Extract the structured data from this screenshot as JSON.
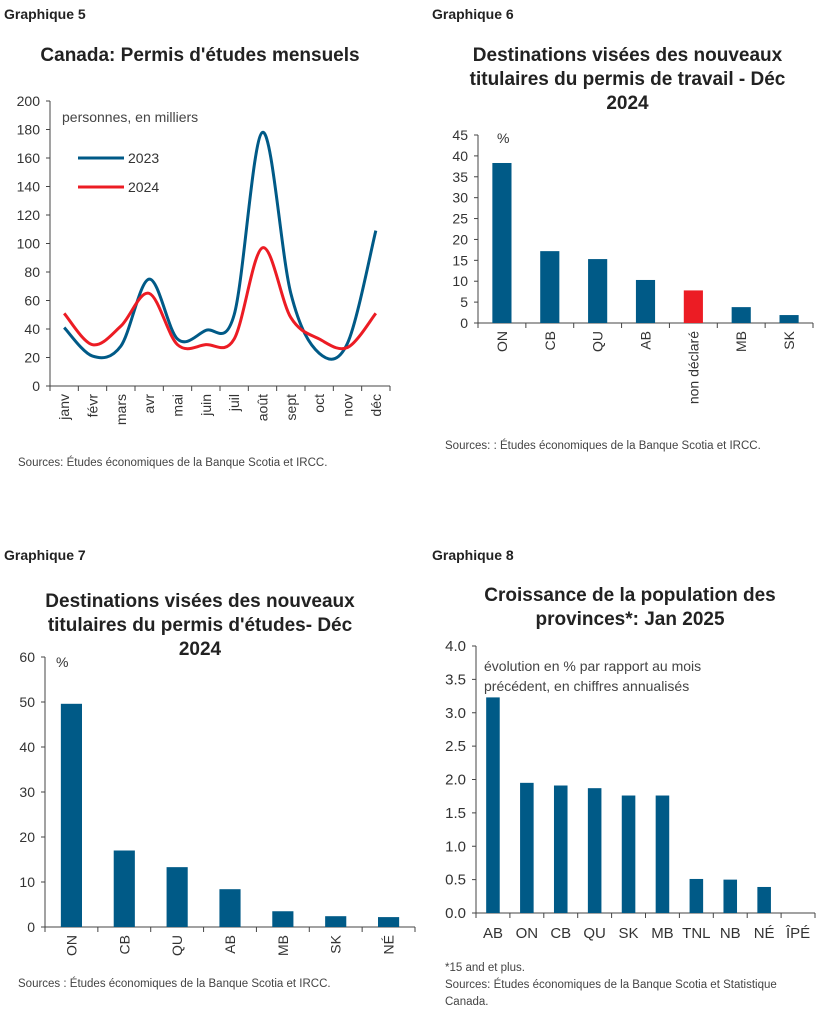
{
  "colors": {
    "blue": "#005a87",
    "red": "#ec1c24",
    "axis": "#444"
  },
  "chart_data": [
    {
      "type": "line",
      "label": "Graphique 5",
      "title": "Canada: Permis d'études mensuels",
      "ylabel": "personnes, en milliers",
      "categories": [
        "janv",
        "févr",
        "mars",
        "avr",
        "mai",
        "juin",
        "juil",
        "août",
        "sept",
        "oct",
        "nov",
        "déc"
      ],
      "ylim": [
        0,
        200
      ],
      "yticks": [
        "0",
        "20",
        "40",
        "60",
        "80",
        "100",
        "120",
        "140",
        "160",
        "180",
        "200"
      ],
      "series": [
        {
          "name": "2023",
          "color": "#005a87",
          "values": [
            41,
            21,
            28,
            75,
            33,
            39,
            50,
            178,
            65,
            23,
            30,
            109
          ]
        },
        {
          "name": "2024",
          "color": "#ec1c24",
          "values": [
            51,
            29,
            42,
            65,
            29,
            29,
            33,
            97,
            48,
            33,
            27,
            51
          ]
        }
      ],
      "legend": "top-left",
      "source": "Sources: Études économiques de la Banque Scotia et IRCC."
    },
    {
      "type": "bar",
      "label": "Graphique 6",
      "title": "Destinations visées des nouveaux titulaires du permis de travail - Déc 2024",
      "unit": "%",
      "categories": [
        "ON",
        "CB",
        "QU",
        "AB",
        "non déclaré",
        "MB",
        "SK"
      ],
      "values": [
        38.3,
        17.2,
        15.3,
        10.3,
        7.8,
        3.8,
        1.9
      ],
      "highlight": "non déclaré",
      "ylim": [
        0,
        45
      ],
      "yticks": [
        "0",
        "5",
        "10",
        "15",
        "20",
        "25",
        "30",
        "35",
        "40",
        "45"
      ],
      "source": "Sources: : Études économiques de la Banque Scotia et IRCC."
    },
    {
      "type": "bar",
      "label": "Graphique 7",
      "title": "Destinations visées des nouveaux titulaires du permis d'études- Déc 2024",
      "unit": "%",
      "categories": [
        "ON",
        "CB",
        "QU",
        "AB",
        "MB",
        "SK",
        "NÉ"
      ],
      "values": [
        49.6,
        17,
        13.3,
        8.4,
        3.5,
        2.4,
        2.2
      ],
      "ylim": [
        0,
        60
      ],
      "yticks": [
        "0",
        "10",
        "20",
        "30",
        "40",
        "50",
        "60"
      ],
      "source": "Sources : Études économiques de la Banque Scotia et IRCC."
    },
    {
      "type": "bar",
      "label": "Graphique 8",
      "title": "Croissance de la population des provinces*: Jan 2025",
      "ylabel": "évolution en % par rapport au mois précédent, en chiffres annualisés",
      "categories": [
        "AB",
        "ON",
        "CB",
        "QU",
        "SK",
        "MB",
        "TNL",
        "NB",
        "NÉ",
        "ÎPÉ"
      ],
      "values": [
        3.23,
        1.95,
        1.91,
        1.87,
        1.76,
        1.76,
        0.51,
        0.5,
        0.39,
        0
      ],
      "ylim": [
        0,
        4
      ],
      "yticks": [
        "0.0",
        "0.5",
        "1.0",
        "1.5",
        "2.0",
        "2.5",
        "3.0",
        "3.5",
        "4.0"
      ],
      "note": "*15 and et plus.",
      "source": "Sources: Études économiques de la Banque Scotia et Statistique Canada."
    }
  ]
}
